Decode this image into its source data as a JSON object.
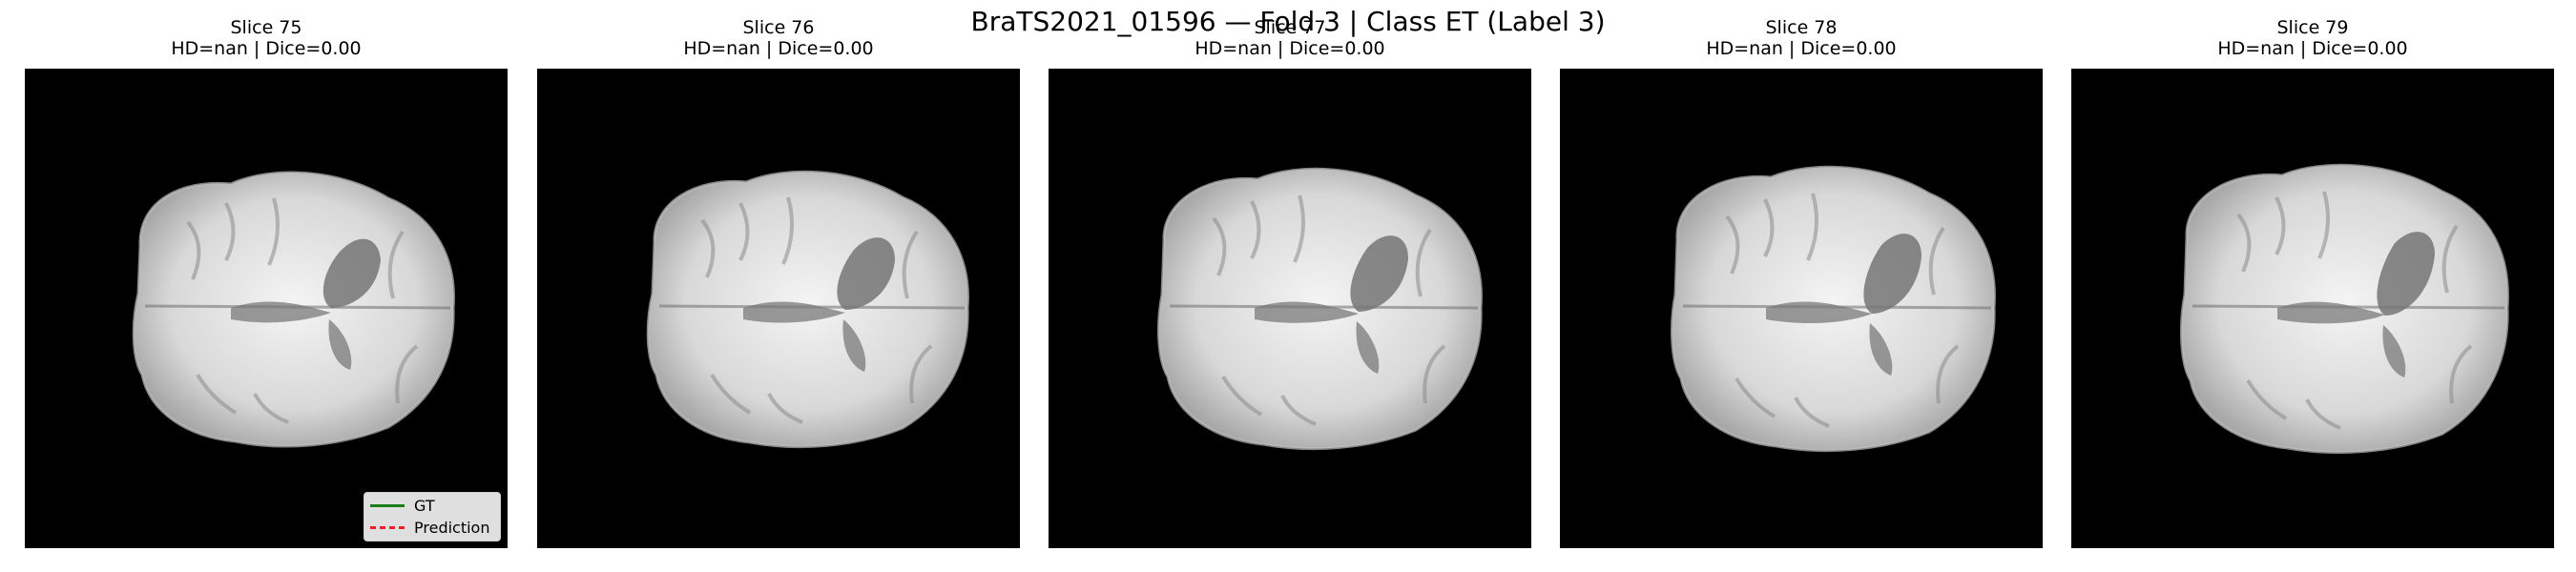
{
  "figure": {
    "title": "BraTS2021_01596 — Fold 3 | Class ET (Label 3)"
  },
  "panels": [
    {
      "slice_label": "Slice 75",
      "metrics": "HD=nan | Dice=0.00"
    },
    {
      "slice_label": "Slice 76",
      "metrics": "HD=nan | Dice=0.00"
    },
    {
      "slice_label": "Slice 77",
      "metrics": "HD=nan | Dice=0.00"
    },
    {
      "slice_label": "Slice 78",
      "metrics": "HD=nan | Dice=0.00"
    },
    {
      "slice_label": "Slice 79",
      "metrics": "HD=nan | Dice=0.00"
    }
  ],
  "legend": {
    "gt_label": "GT",
    "prediction_label": "Prediction",
    "gt_color": "#1a7f1a",
    "prediction_color": "#e8202a"
  }
}
